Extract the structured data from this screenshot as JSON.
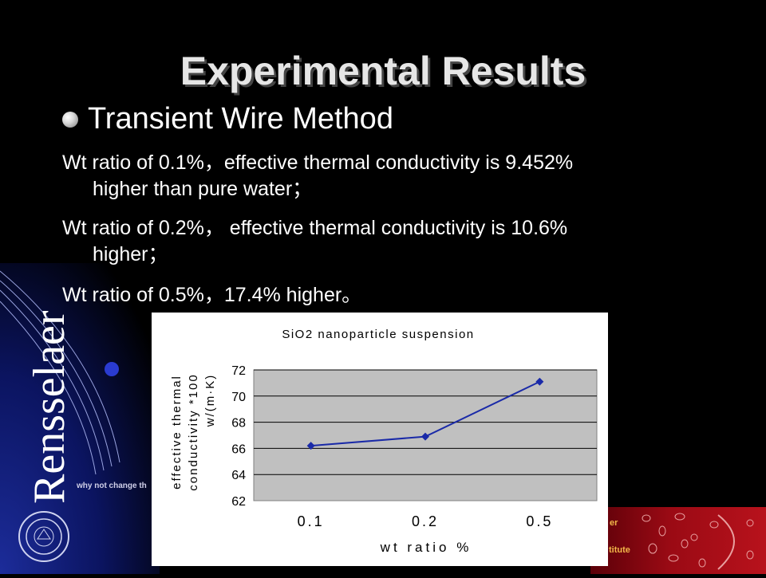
{
  "slide": {
    "title": "Experimental Results",
    "bullet": "Transient Wire Method",
    "paragraphs": [
      {
        "line1": "Wt ratio of 0.1%，effective thermal conductivity is 9.452%",
        "line2": "higher than pure water；"
      },
      {
        "line1": "Wt ratio of 0.2%， effective thermal conductivity is 10.6%",
        "line2": "higher；"
      },
      {
        "line1": "Wt ratio of 0.5%，17.4% higher。",
        "line2": ""
      }
    ]
  },
  "branding": {
    "logo_text": "Rensselaer",
    "tagline": "why not change th",
    "panel_text_1": "er",
    "panel_text_2": "titute"
  },
  "colors": {
    "chart_line": "#1a2aa8",
    "plot_background": "#c0c0c0",
    "band_blue": "#0b1460",
    "panel_red": "#9a0a14"
  },
  "chart_data": {
    "type": "line",
    "title": "SiO2 nanoparticle suspension",
    "xlabel": "wt ratio %",
    "ylabel_line1": "effective thermal",
    "ylabel_line2": "conductivity *100",
    "ylabel_line3": "w/(m·K)",
    "categories": [
      "0.1",
      "0.2",
      "0.5"
    ],
    "series": [
      {
        "values": [
          66.2,
          66.9,
          71.1
        ]
      }
    ],
    "ylim": [
      62,
      72
    ],
    "yticks": [
      62,
      64,
      66,
      68,
      70,
      72
    ],
    "grid": true,
    "legend": "none"
  }
}
